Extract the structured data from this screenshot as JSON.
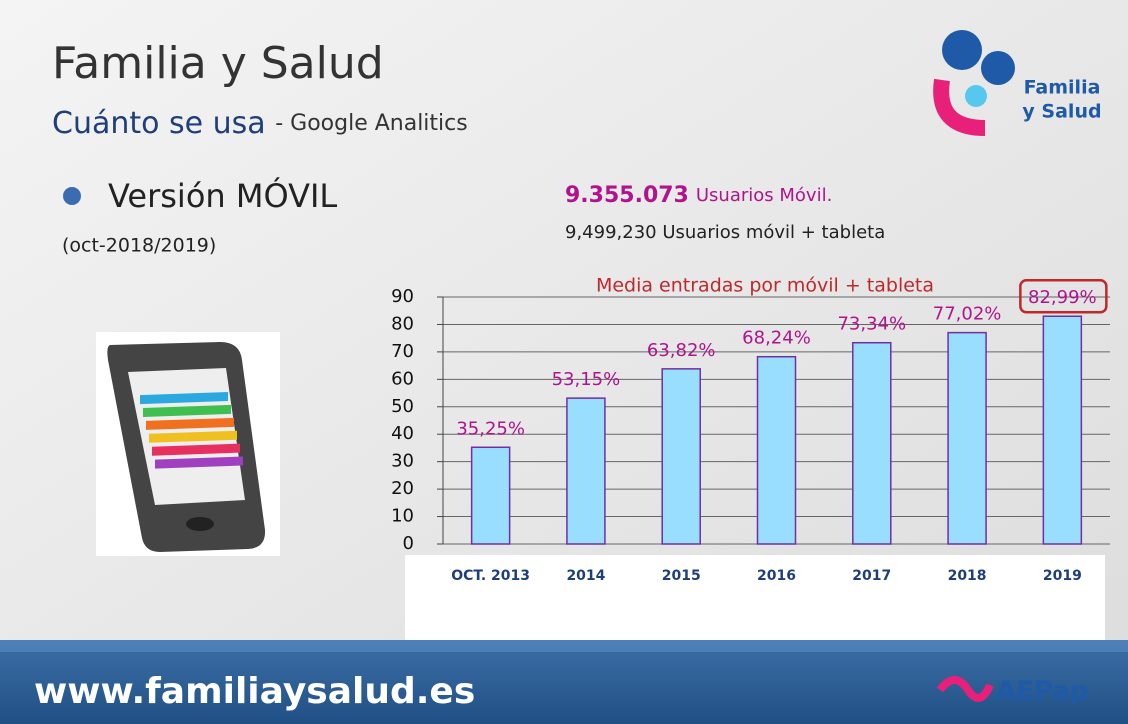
{
  "header": {
    "title": "Familia y Salud",
    "subtitle": "Cuánto se usa",
    "subtitle_note": "- Google Analitics"
  },
  "logo": {
    "line1": "Familia",
    "line2": "y Salud"
  },
  "section": {
    "bullet": "Versión MÓVIL",
    "period": "(oct-2018/2019)"
  },
  "stats": {
    "mobile_users": "9.355.073",
    "mobile_users_label": "Usuarios Móvil.",
    "total_line": "9,499,230 Usuarios móvil + tableta"
  },
  "chart_data": {
    "type": "bar",
    "title": "Media entradas por móvil + tableta",
    "categories": [
      "OCT. 2013",
      "2014",
      "2015",
      "2016",
      "2017",
      "2018",
      "2019"
    ],
    "values": [
      35.25,
      53.15,
      63.82,
      68.24,
      73.34,
      77.02,
      82.99
    ],
    "value_labels": [
      "35,25%",
      "53,15%",
      "63,82%",
      "68,24%",
      "73,34%",
      "77,02%",
      "82,99%"
    ],
    "color": "#99ddff",
    "ylim": [
      0,
      90
    ],
    "yticks": [
      0,
      10,
      20,
      30,
      40,
      50,
      60,
      70,
      80,
      90
    ],
    "grid": true
  },
  "footer": {
    "url": "www.familiaysalud.es",
    "brand": "AEPap"
  }
}
